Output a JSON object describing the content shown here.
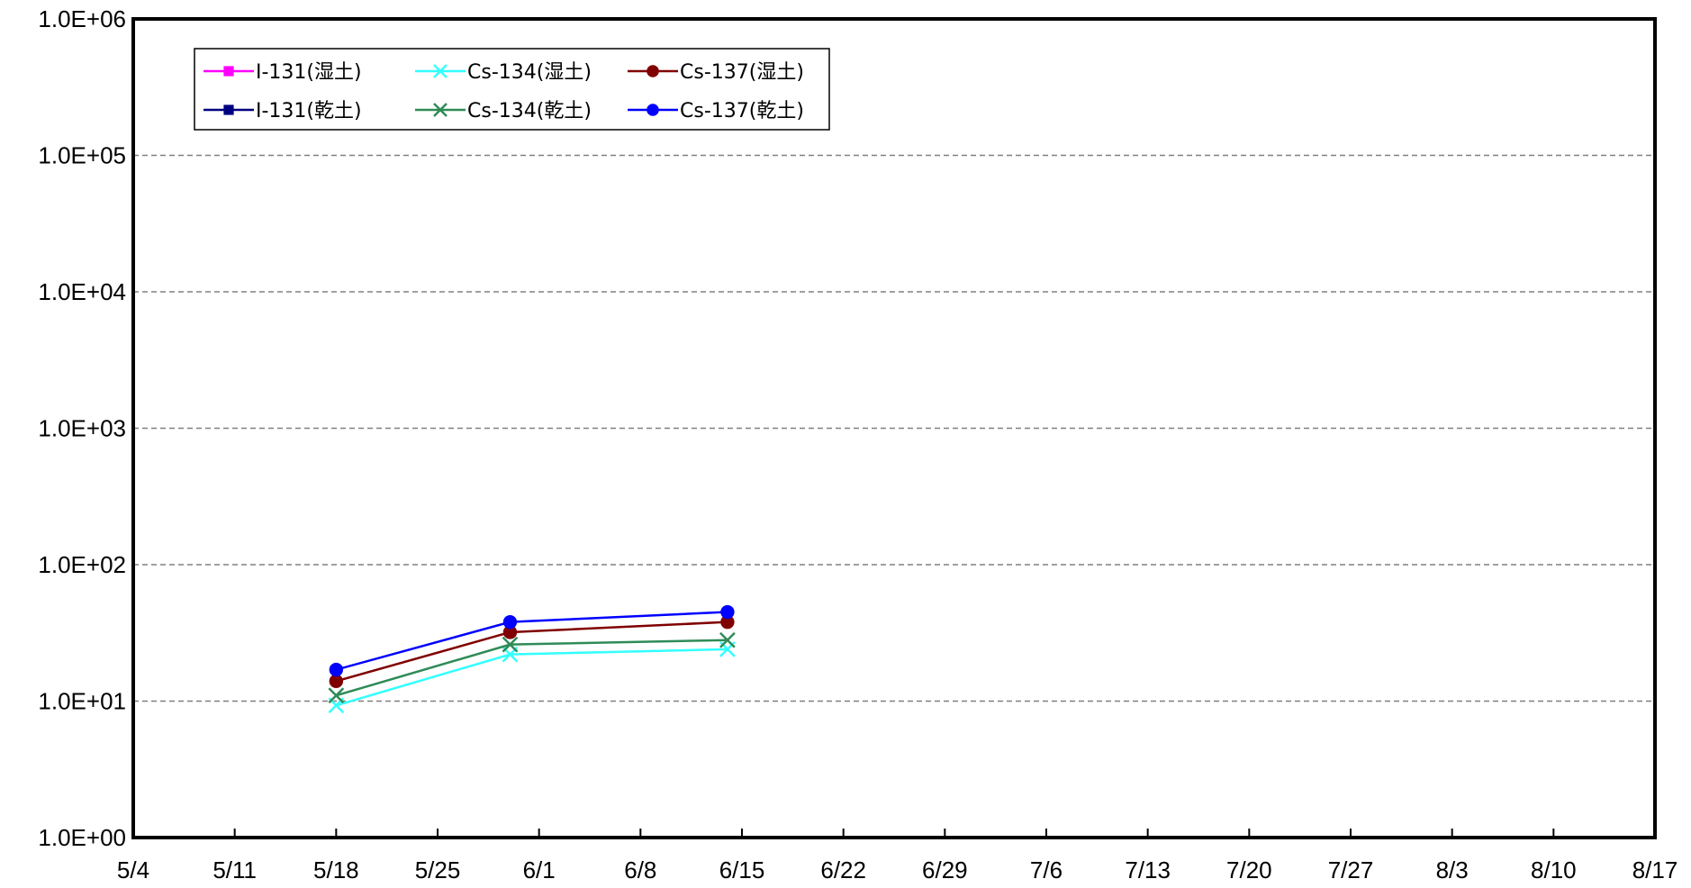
{
  "chart_data": {
    "type": "line",
    "title": "",
    "xlabel": "",
    "ylabel": "",
    "y_scale": "log",
    "ylim": [
      1,
      1000000
    ],
    "y_ticks": [
      1,
      10,
      100,
      1000,
      10000,
      100000,
      1000000
    ],
    "y_tick_labels": [
      "1.0E+00",
      "1.0E+01",
      "1.0E+02",
      "1.0E+03",
      "1.0E+04",
      "1.0E+05",
      "1.0E+06"
    ],
    "x_ticks": [
      "5/4",
      "5/11",
      "5/18",
      "5/25",
      "6/1",
      "6/8",
      "6/15",
      "6/22",
      "6/29",
      "7/6",
      "7/13",
      "7/20",
      "7/27",
      "8/3",
      "8/10",
      "8/17"
    ],
    "xlim": [
      "5/4",
      "8/17"
    ],
    "grid": "horizontal dashed",
    "legend_position": "top-left",
    "series": [
      {
        "name": "I-131(湿土)",
        "color": "#ff00ff",
        "marker": "square",
        "x": [],
        "values": []
      },
      {
        "name": "Cs-134(湿土)",
        "color": "#33ffff",
        "marker": "x",
        "x": [
          "5/18",
          "5/30",
          "6/14"
        ],
        "values": [
          9.3,
          22,
          24
        ]
      },
      {
        "name": "Cs-137(湿土)",
        "color": "#800000",
        "marker": "circle",
        "x": [
          "5/18",
          "5/30",
          "6/14"
        ],
        "values": [
          14,
          32,
          38
        ]
      },
      {
        "name": "I-131(乾土)",
        "color": "#000080",
        "marker": "square",
        "x": [],
        "values": []
      },
      {
        "name": "Cs-134(乾土)",
        "color": "#2e8b57",
        "marker": "x",
        "x": [
          "5/18",
          "5/30",
          "6/14"
        ],
        "values": [
          11,
          26,
          28
        ]
      },
      {
        "name": "Cs-137(乾土)",
        "color": "#0000ff",
        "marker": "circle",
        "x": [
          "5/18",
          "5/30",
          "6/14"
        ],
        "values": [
          17,
          38,
          45
        ]
      }
    ]
  }
}
